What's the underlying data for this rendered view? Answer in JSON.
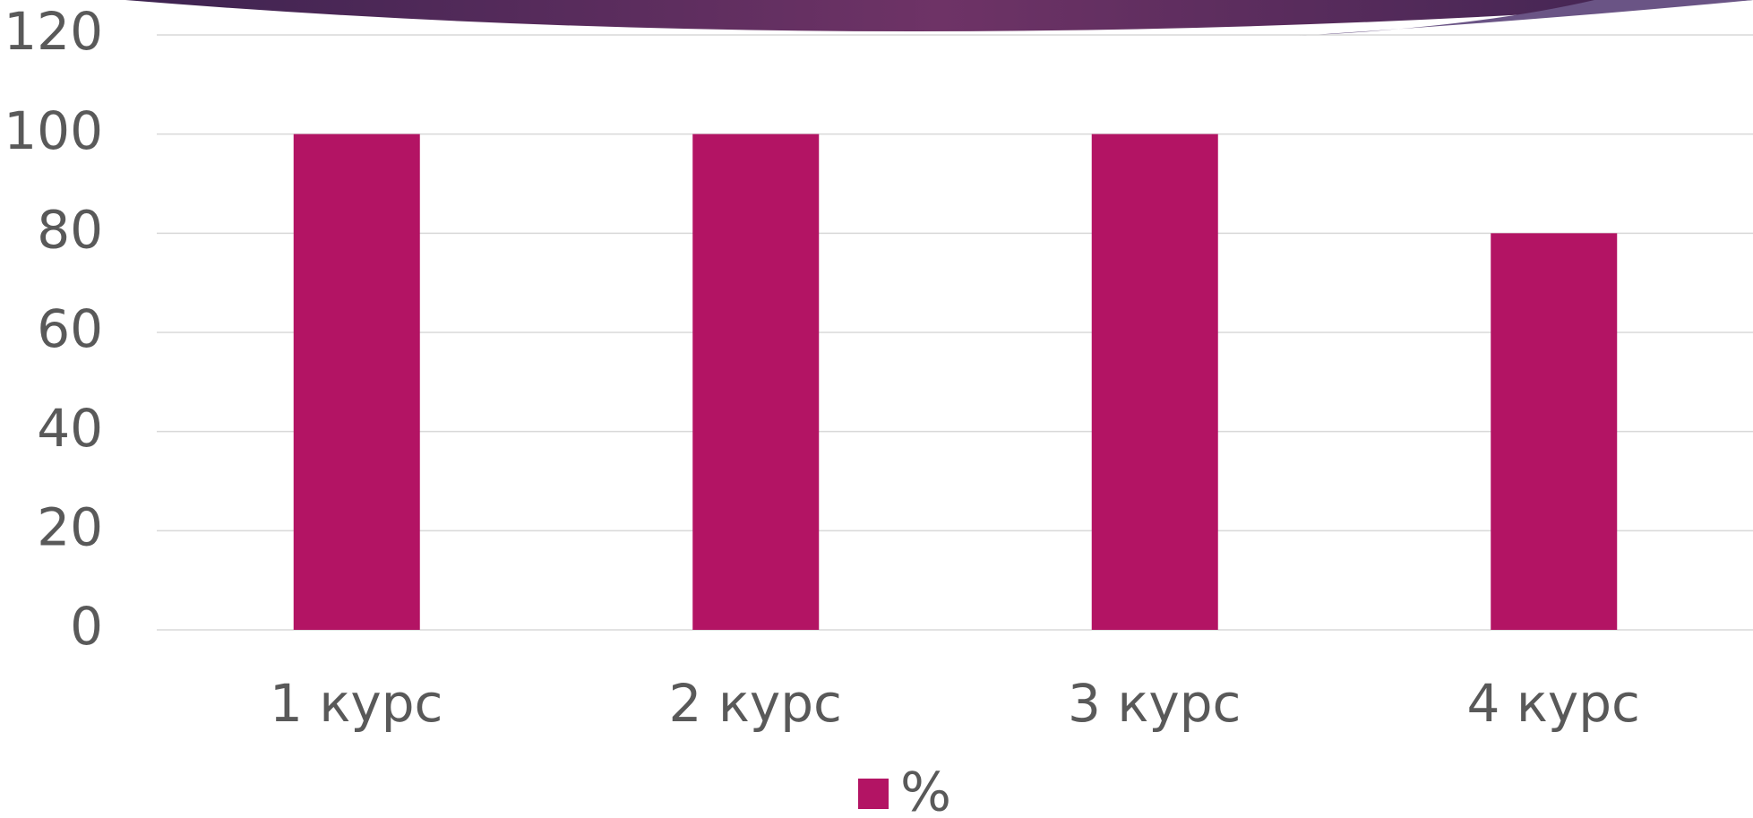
{
  "chart_data": {
    "type": "bar",
    "categories": [
      "1 курс",
      "2 курс",
      "3 курс",
      "4 курс"
    ],
    "series": [
      {
        "name": "%",
        "color": "#b31464",
        "values": [
          100,
          100,
          100,
          80
        ]
      }
    ],
    "ylim": [
      0,
      120
    ],
    "yticks": [
      0,
      20,
      40,
      60,
      80,
      100,
      120
    ],
    "grid": true,
    "legend": "bottom"
  }
}
